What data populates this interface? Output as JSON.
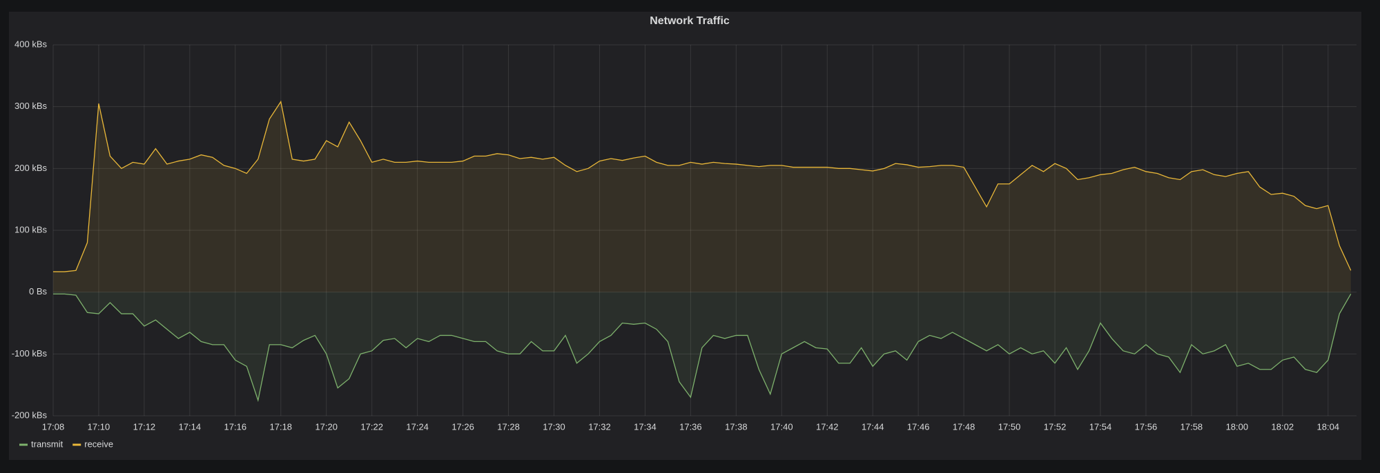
{
  "chart_data": {
    "type": "line",
    "title": "Network Traffic",
    "x": [
      1028,
      1028.5,
      1029,
      1029.5,
      1030,
      1030.5,
      1031,
      1031.5,
      1032,
      1032.5,
      1033,
      1033.5,
      1034,
      1034.5,
      1035,
      1035.5,
      1036,
      1036.5,
      1037,
      1037.5,
      1038,
      1038.5,
      1039,
      1039.5,
      1040,
      1040.5,
      1041,
      1041.5,
      1042,
      1042.5,
      1043,
      1043.5,
      1044,
      1044.5,
      1045,
      1045.5,
      1046,
      1046.5,
      1047,
      1047.5,
      1048,
      1048.5,
      1049,
      1049.5,
      1050,
      1050.5,
      1051,
      1051.5,
      1052,
      1052.5,
      1053,
      1053.5,
      1054,
      1054.5,
      1055,
      1055.5,
      1056,
      1056.5,
      1057,
      1057.5,
      1058,
      1058.5,
      1059,
      1059.5,
      1060,
      1060.5,
      1061,
      1061.5,
      1062,
      1062.5,
      1063,
      1063.5,
      1064,
      1064.5,
      1065,
      1065.5,
      1066,
      1066.5,
      1067,
      1067.5,
      1068,
      1068.5,
      1069,
      1069.5,
      1070,
      1070.5,
      1071,
      1071.5,
      1072,
      1072.5,
      1073,
      1073.5,
      1074,
      1074.5,
      1075,
      1075.5,
      1076,
      1076.5,
      1077,
      1077.5,
      1078,
      1078.5,
      1079,
      1079.5,
      1080,
      1080.5,
      1081,
      1081.5,
      1082,
      1082.5,
      1083,
      1083.5,
      1084,
      1084.5,
      1085
    ],
    "series": [
      {
        "name": "transmit",
        "color": "#7eb26d",
        "values": [
          -3,
          -3,
          -5,
          -33,
          -35,
          -17,
          -35,
          -35,
          -55,
          -45,
          -60,
          -75,
          -65,
          -80,
          -85,
          -85,
          -110,
          -120,
          -175,
          -85,
          -85,
          -90,
          -78,
          -70,
          -100,
          -155,
          -140,
          -100,
          -95,
          -78,
          -75,
          -90,
          -75,
          -80,
          -70,
          -70,
          -75,
          -80,
          -80,
          -95,
          -100,
          -100,
          -80,
          -95,
          -95,
          -70,
          -115,
          -100,
          -80,
          -70,
          -50,
          -52,
          -50,
          -60,
          -80,
          -145,
          -170,
          -90,
          -70,
          -75,
          -70,
          -70,
          -125,
          -165,
          -100,
          -90,
          -80,
          -90,
          -92,
          -115,
          -115,
          -90,
          -120,
          -100,
          -95,
          -110,
          -80,
          -70,
          -75,
          -65,
          -75,
          -85,
          -95,
          -85,
          -100,
          -90,
          -100,
          -95,
          -115,
          -90,
          -125,
          -95,
          -50,
          -75,
          -95,
          -100,
          -85,
          -100,
          -105,
          -130,
          -85,
          -100,
          -95,
          -85,
          -120,
          -115,
          -125,
          -125,
          -110,
          -105,
          -125,
          -130,
          -110,
          -35,
          -3
        ]
      },
      {
        "name": "receive",
        "color": "#eab839",
        "values": [
          33,
          33,
          35,
          80,
          305,
          220,
          200,
          210,
          207,
          232,
          207,
          212,
          215,
          222,
          218,
          205,
          200,
          192,
          215,
          280,
          308,
          215,
          212,
          215,
          245,
          235,
          275,
          245,
          210,
          215,
          210,
          210,
          212,
          210,
          210,
          210,
          212,
          220,
          220,
          224,
          222,
          216,
          218,
          215,
          218,
          205,
          195,
          200,
          212,
          216,
          213,
          217,
          220,
          210,
          205,
          205,
          210,
          207,
          210,
          208,
          207,
          205,
          203,
          205,
          205,
          202,
          202,
          202,
          202,
          200,
          200,
          198,
          196,
          200,
          208,
          206,
          202,
          203,
          205,
          205,
          202,
          170,
          138,
          175,
          175,
          190,
          205,
          195,
          208,
          200,
          182,
          185,
          190,
          192,
          198,
          202,
          195,
          192,
          185,
          182,
          195,
          198,
          190,
          187,
          192,
          195,
          170,
          158,
          160,
          155,
          140,
          135,
          140,
          75,
          35
        ]
      }
    ],
    "xlim": [
      1028,
      1085.25
    ],
    "xticks": [
      {
        "value": 1028,
        "label": "17:08"
      },
      {
        "value": 1030,
        "label": "17:10"
      },
      {
        "value": 1032,
        "label": "17:12"
      },
      {
        "value": 1034,
        "label": "17:14"
      },
      {
        "value": 1036,
        "label": "17:16"
      },
      {
        "value": 1038,
        "label": "17:18"
      },
      {
        "value": 1040,
        "label": "17:20"
      },
      {
        "value": 1042,
        "label": "17:22"
      },
      {
        "value": 1044,
        "label": "17:24"
      },
      {
        "value": 1046,
        "label": "17:26"
      },
      {
        "value": 1048,
        "label": "17:28"
      },
      {
        "value": 1050,
        "label": "17:30"
      },
      {
        "value": 1052,
        "label": "17:32"
      },
      {
        "value": 1054,
        "label": "17:34"
      },
      {
        "value": 1056,
        "label": "17:36"
      },
      {
        "value": 1058,
        "label": "17:38"
      },
      {
        "value": 1060,
        "label": "17:40"
      },
      {
        "value": 1062,
        "label": "17:42"
      },
      {
        "value": 1064,
        "label": "17:44"
      },
      {
        "value": 1066,
        "label": "17:46"
      },
      {
        "value": 1068,
        "label": "17:48"
      },
      {
        "value": 1070,
        "label": "17:50"
      },
      {
        "value": 1072,
        "label": "17:52"
      },
      {
        "value": 1074,
        "label": "17:54"
      },
      {
        "value": 1076,
        "label": "17:56"
      },
      {
        "value": 1078,
        "label": "17:58"
      },
      {
        "value": 1080,
        "label": "18:00"
      },
      {
        "value": 1082,
        "label": "18:02"
      },
      {
        "value": 1084,
        "label": "18:04"
      }
    ],
    "ylim": [
      -200,
      400
    ],
    "yticks": [
      {
        "value": -200,
        "label": "-200 kBs"
      },
      {
        "value": -100,
        "label": "-100 kBs"
      },
      {
        "value": 0,
        "label": "0 Bs"
      },
      {
        "value": 100,
        "label": "100 kBs"
      },
      {
        "value": 200,
        "label": "200 kBs"
      },
      {
        "value": 300,
        "label": "300 kBs"
      },
      {
        "value": 400,
        "label": "400 kBs"
      }
    ],
    "grid": true,
    "area_fill": true,
    "legend": "bottom-left"
  }
}
